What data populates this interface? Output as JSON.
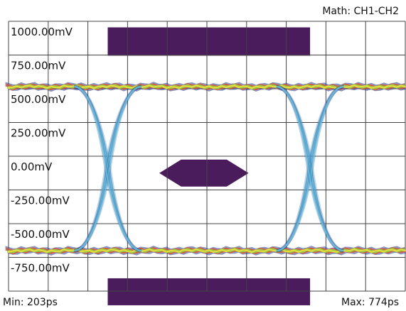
{
  "header": {
    "math_label": "Math: CH1-CH2"
  },
  "footer": {
    "min_label": "Min: 203ps",
    "max_label": "Max: 774ps"
  },
  "colors": {
    "mask": "#4a1c5c",
    "grid": "#444444",
    "trace_transition": "#5ec3e0",
    "trace_rail_core": "#8fd24a",
    "trace_rail_hot": "#f2e13a",
    "trace_rail_warm": "#e0502a",
    "trace_rail_edge": "#2a3f8f"
  },
  "chart_data": {
    "type": "eye_diagram",
    "title": "",
    "xlabel": "",
    "ylabel": "",
    "y_unit": "mV",
    "ylim": [
      -875,
      1125
    ],
    "y_ticks": [
      "1000.00mV",
      "750.00mV",
      "500.00mV",
      "250.00mV",
      "0.00mV",
      "-250.00mV",
      "-500.00mV",
      "-750.00mV"
    ],
    "y_tick_values": [
      1000,
      750,
      500,
      250,
      0,
      -250,
      -500,
      -750
    ],
    "x_divisions": 10,
    "grid": true,
    "eye": {
      "high_level_mV": 640,
      "low_level_mV": -575,
      "crossing_left_div": 2.5,
      "crossing_right_div": 7.6,
      "transition_halfwidth_div": 0.4
    },
    "masks": [
      {
        "name": "top",
        "shape": "rect",
        "x_div": [
          2.5,
          7.6
        ],
        "y_mV": [
          1080,
          870
        ]
      },
      {
        "name": "bottom",
        "shape": "rect",
        "x_div": [
          2.5,
          7.6
        ],
        "y_mV": [
          -780,
          -980
        ]
      },
      {
        "name": "center",
        "shape": "hexagon",
        "x_div": [
          3.8,
          4.35,
          5.5,
          6.05
        ],
        "y_mV": [
          100,
          0,
          -100
        ]
      }
    ]
  }
}
